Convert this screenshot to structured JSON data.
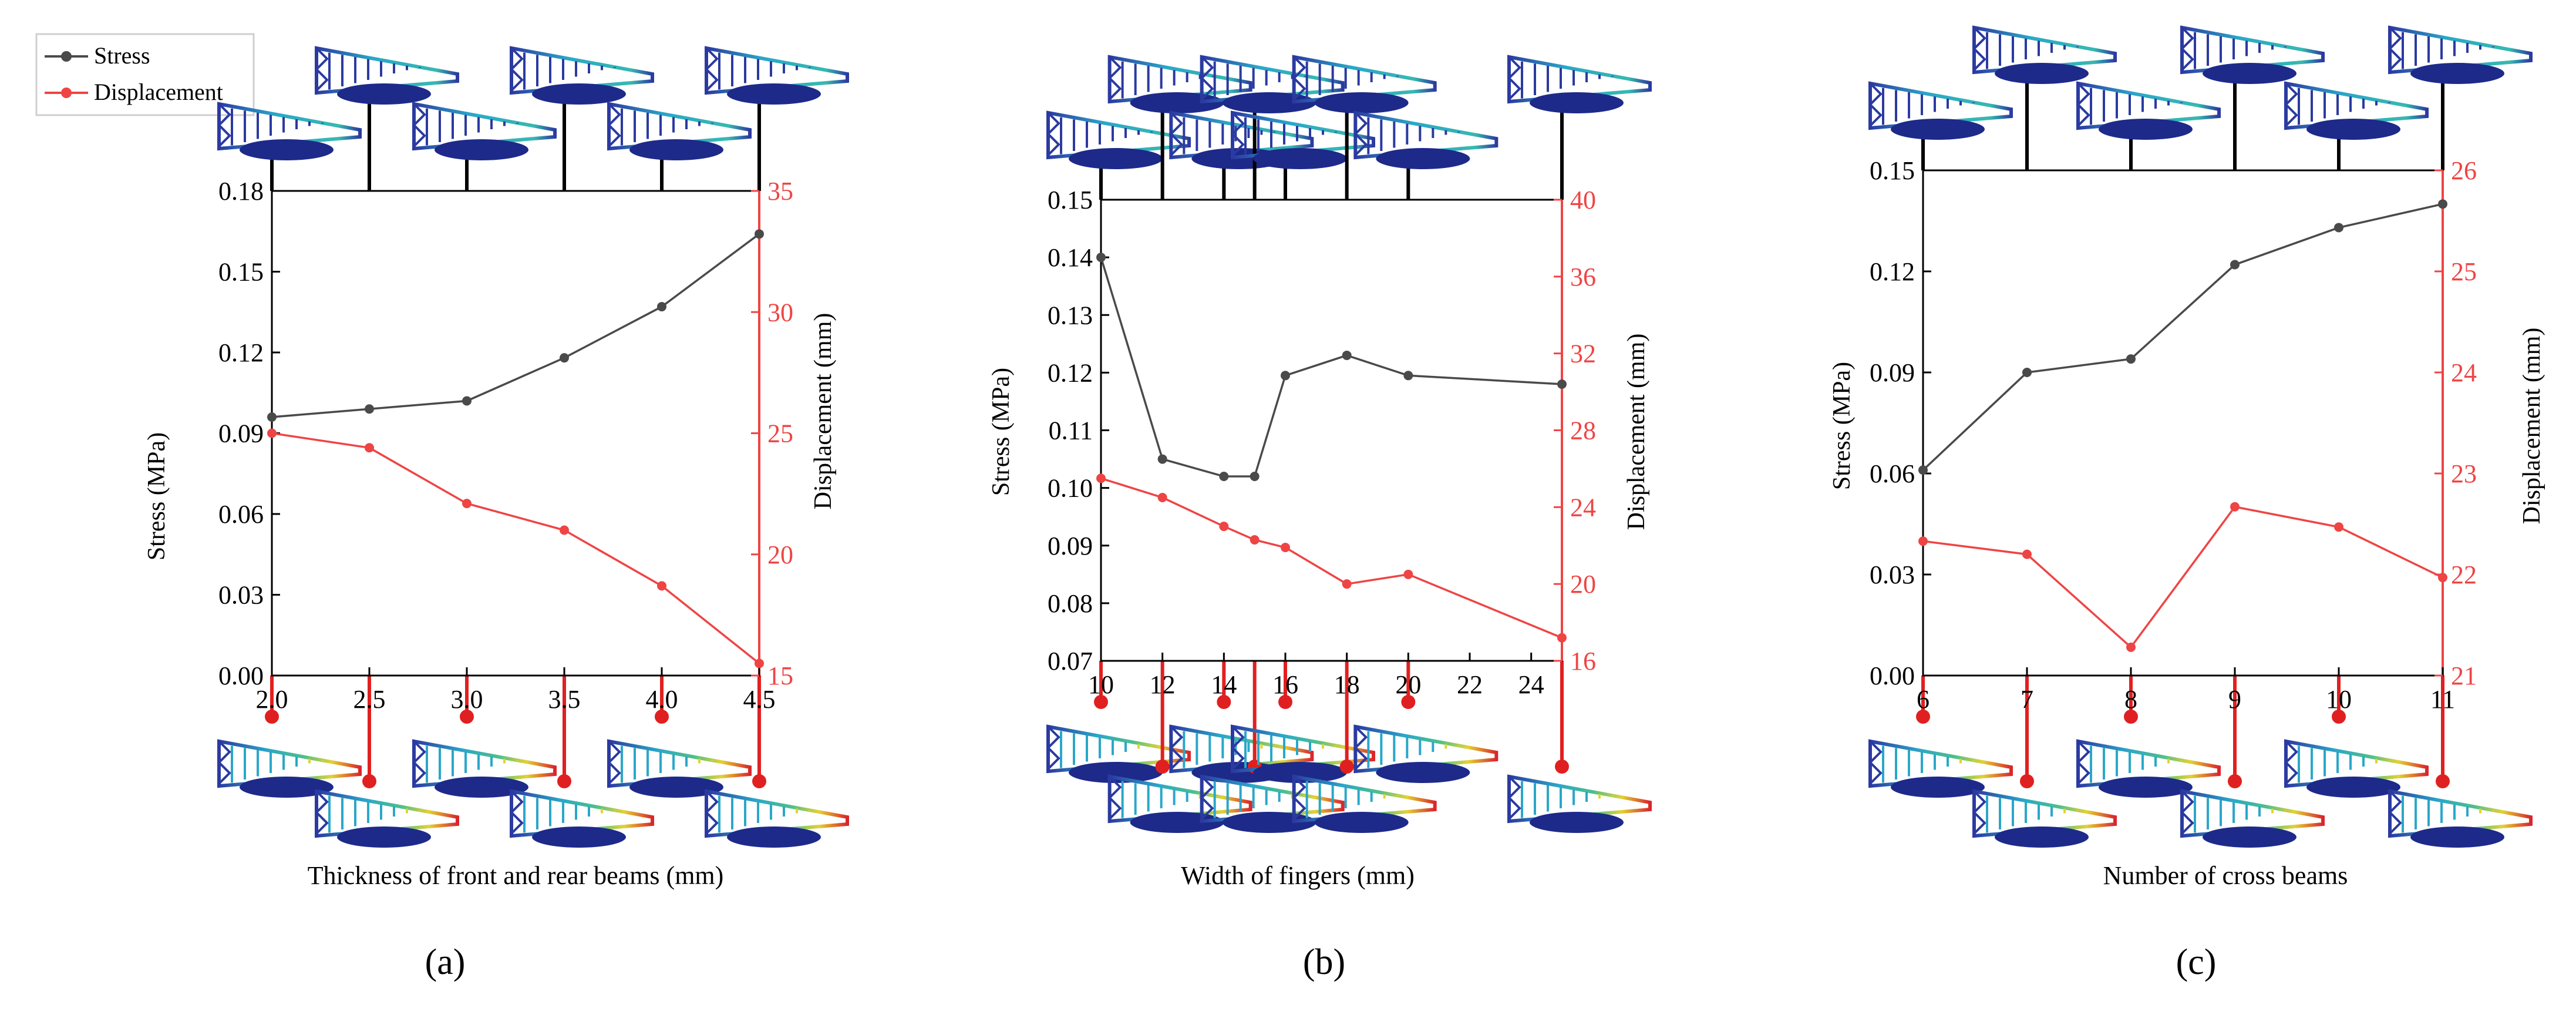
{
  "legend": {
    "stress_label": "Stress",
    "displacement_label": "Displacement"
  },
  "colors": {
    "stress": "#4a4a4a",
    "displacement": "#ef4444",
    "axis": "#000000",
    "right_axis": "#ef4444"
  },
  "icon": "wing-rib-fea-thumbnail",
  "chart_data": [
    {
      "type": "line",
      "panel_label": "(a)",
      "xlabel": "Thickness of front and rear beams (mm)",
      "ylabel": "Stress (MPa)",
      "y2label": "Displacement (mm)",
      "xlim": [
        2.0,
        4.5
      ],
      "ylim": [
        0,
        0.18
      ],
      "y2lim": [
        15,
        35
      ],
      "xticks": [
        "2.0",
        "2.5",
        "3.0",
        "3.5",
        "4.0",
        "4.5"
      ],
      "yticks": [
        "0.00",
        "0.03",
        "0.06",
        "0.09",
        "0.12",
        "0.15",
        "0.18"
      ],
      "y2ticks": [
        "15",
        "20",
        "25",
        "30",
        "35"
      ],
      "grid": false,
      "series": [
        {
          "name": "Stress",
          "axis": "left",
          "x": [
            2.0,
            2.5,
            3.0,
            3.5,
            4.0,
            4.5
          ],
          "y": [
            0.096,
            0.099,
            0.102,
            0.118,
            0.137,
            0.164
          ]
        },
        {
          "name": "Displacement",
          "axis": "right",
          "x": [
            2.0,
            2.5,
            3.0,
            3.5,
            4.0,
            4.5
          ],
          "y": [
            25.0,
            24.4,
            22.1,
            21.0,
            18.7,
            15.5
          ]
        }
      ]
    },
    {
      "type": "line",
      "panel_label": "(b)",
      "xlabel": "Width of fingers (mm)",
      "ylabel": "Stress (MPa)",
      "y2label": "Displacement (mm)",
      "xlim": [
        10,
        25
      ],
      "ylim": [
        0.07,
        0.15
      ],
      "y2lim": [
        16,
        40
      ],
      "xticks": [
        "10",
        "12",
        "14",
        "16",
        "18",
        "20",
        "22",
        "24"
      ],
      "yticks": [
        "0.07",
        "0.08",
        "0.09",
        "0.10",
        "0.11",
        "0.12",
        "0.13",
        "0.14",
        "0.15"
      ],
      "y2ticks": [
        "16",
        "20",
        "24",
        "28",
        "32",
        "36",
        "40"
      ],
      "grid": false,
      "series": [
        {
          "name": "Stress",
          "axis": "left",
          "x": [
            10,
            12,
            14,
            15,
            16,
            18,
            20,
            25
          ],
          "y": [
            0.14,
            0.105,
            0.102,
            0.102,
            0.1195,
            0.123,
            0.1195,
            0.118
          ]
        },
        {
          "name": "Displacement",
          "axis": "right",
          "x": [
            10,
            12,
            14,
            15,
            16,
            18,
            20,
            25
          ],
          "y": [
            25.5,
            24.5,
            23.0,
            22.3,
            21.9,
            20.0,
            20.5,
            17.2
          ]
        }
      ]
    },
    {
      "type": "line",
      "panel_label": "(c)",
      "xlabel": "Number of cross beams",
      "ylabel": "Stress (MPa)",
      "y2label": "Displacement (mm)",
      "xlim": [
        6,
        11
      ],
      "ylim": [
        0,
        0.15
      ],
      "y2lim": [
        21,
        26
      ],
      "xticks": [
        "6",
        "7",
        "8",
        "9",
        "10",
        "11"
      ],
      "yticks": [
        "0.00",
        "0.03",
        "0.06",
        "0.09",
        "0.12",
        "0.15"
      ],
      "y2ticks": [
        "21",
        "22",
        "23",
        "24",
        "25",
        "26"
      ],
      "grid": false,
      "series": [
        {
          "name": "Stress",
          "axis": "left",
          "x": [
            6,
            7,
            8,
            9,
            10,
            11
          ],
          "y": [
            0.061,
            0.09,
            0.094,
            0.122,
            0.133,
            0.14
          ]
        },
        {
          "name": "Displacement",
          "axis": "right",
          "x": [
            6,
            7,
            8,
            9,
            10,
            11
          ],
          "y": [
            22.33,
            22.2,
            21.28,
            22.67,
            22.47,
            21.97
          ]
        }
      ]
    }
  ]
}
